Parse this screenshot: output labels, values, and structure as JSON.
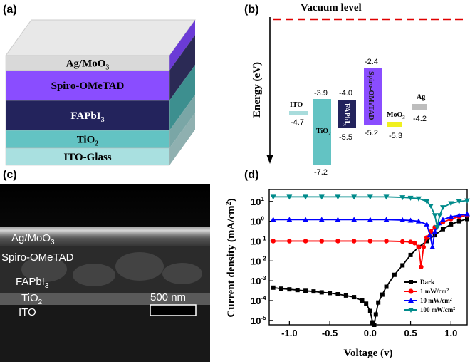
{
  "panels": {
    "a": {
      "label": "(a)",
      "layers": [
        {
          "name": "Ag/MoO",
          "sub": "3",
          "front": "#d9d9d9",
          "side": "#6b3bd6",
          "top": "#e8e8e8"
        },
        {
          "name": "Spiro-OMeTAD",
          "sub": "",
          "front": "#8a4dff",
          "side": "#2b2a55"
        },
        {
          "name": "FAPbI",
          "sub": "3",
          "front": "#23235c",
          "side": "#3d8f8f"
        },
        {
          "name": "TiO",
          "sub": "2",
          "front": "#63c3c3",
          "side": "#7aa6a6"
        },
        {
          "name": "ITO-Glass",
          "sub": "",
          "front": "#a9e0e0",
          "side": "#8fb0b0"
        }
      ]
    },
    "b": {
      "label": "(b)",
      "vacuum_label": "Vacuum level",
      "yaxis_label": "Energy (eV)",
      "levels": [
        {
          "id": "ito",
          "label": "ITO",
          "values": [
            "-4.7"
          ],
          "color": "#a8dcdc"
        },
        {
          "id": "tio2",
          "label": "TiO",
          "sub": "2",
          "values": [
            "-3.9",
            "-7.2"
          ],
          "color": "#63c3c3"
        },
        {
          "id": "fapbi3",
          "label": "FAPbI",
          "sub": "3",
          "values": [
            "-4.0",
            "-5.5"
          ],
          "color": "#23235c"
        },
        {
          "id": "spiro",
          "label": "Spiro-OMeTAD",
          "values": [
            "-2.4",
            "-5.2"
          ],
          "color": "#8a4dff"
        },
        {
          "id": "moo3",
          "label": "MoO",
          "sub": "3",
          "values": [
            "-5.3"
          ],
          "color": "#f0f020"
        },
        {
          "id": "ag",
          "label": "Ag",
          "values": [
            "-4.2"
          ],
          "color": "#bdbdbd"
        }
      ]
    },
    "c": {
      "label": "(c)",
      "layer_labels": [
        "Ag/MoO",
        "Spiro-OMeTAD",
        "FAPbI",
        "TiO",
        "ITO"
      ],
      "subs": [
        "3",
        "",
        "3",
        "2",
        ""
      ],
      "scalebar": "500  nm"
    },
    "d": {
      "label": "(d)",
      "xlabel": "Voltage (v)",
      "ylabel": "Current density (mA/cm",
      "ylabel_sup": "2",
      "ylabel_end": ")",
      "x_ticks": [
        "-1.0",
        "-0.5",
        "0.0",
        "0.5",
        "1.0"
      ],
      "y_ticks": [
        "10",
        "10",
        "10",
        "10",
        "10",
        "10",
        "10"
      ],
      "y_exps": [
        "1",
        "0",
        "-1",
        "-2",
        "-3",
        "-4",
        "-5"
      ],
      "legend": [
        {
          "text": "Dark",
          "sup": "",
          "color": "#000000",
          "marker": "square"
        },
        {
          "text": "1 mW/cm",
          "sup": "2",
          "color": "#ff0000",
          "marker": "circle"
        },
        {
          "text": "10 mW/cm",
          "sup": "2",
          "color": "#0000ff",
          "marker": "triangle-up"
        },
        {
          "text": "100 mW/cm",
          "sup": "2",
          "color": "#008b8b",
          "marker": "triangle-down"
        }
      ]
    }
  },
  "chart_data": {
    "type": "line",
    "xlabel": "Voltage (v)",
    "ylabel": "Current density (mA/cm2)",
    "yscale": "log",
    "xlim": [
      -1.25,
      1.2
    ],
    "ylim": [
      6e-06,
      40
    ],
    "series": [
      {
        "name": "Dark",
        "color": "#000000",
        "marker": "square",
        "x": [
          -1.2,
          -1.1,
          -1.0,
          -0.9,
          -0.8,
          -0.7,
          -0.6,
          -0.5,
          -0.4,
          -0.3,
          -0.2,
          -0.1,
          -0.05,
          0.0,
          0.03,
          0.05,
          0.07,
          0.1,
          0.15,
          0.2,
          0.3,
          0.4,
          0.5,
          0.6,
          0.7,
          0.8,
          0.9,
          1.0,
          1.1,
          1.2
        ],
        "y": [
          0.00045,
          0.0004,
          0.00037,
          0.00034,
          0.00031,
          0.00029,
          0.00026,
          0.00024,
          0.00021,
          0.00018,
          0.00015,
          0.0001,
          7e-05,
          3e-05,
          8e-06,
          6e-06,
          2e-05,
          8e-05,
          0.0002,
          0.0005,
          0.002,
          0.006,
          0.02,
          0.05,
          0.1,
          0.2,
          0.4,
          0.7,
          1.0,
          1.3
        ]
      },
      {
        "name": "1 mW/cm2",
        "color": "#ff0000",
        "marker": "circle",
        "x": [
          -1.2,
          -1.0,
          -0.8,
          -0.6,
          -0.4,
          -0.2,
          0.0,
          0.2,
          0.4,
          0.5,
          0.55,
          0.6,
          0.63,
          0.66,
          0.7,
          0.75,
          0.8,
          0.9,
          1.0,
          1.1,
          1.2
        ],
        "y": [
          0.1,
          0.1,
          0.1,
          0.1,
          0.1,
          0.1,
          0.1,
          0.1,
          0.095,
          0.09,
          0.08,
          0.05,
          0.005,
          0.05,
          0.15,
          0.3,
          0.5,
          0.9,
          1.3,
          1.7,
          2.0
        ]
      },
      {
        "name": "10 mW/cm2",
        "color": "#0000ff",
        "marker": "triangle-up",
        "x": [
          -1.2,
          -1.0,
          -0.8,
          -0.6,
          -0.4,
          -0.2,
          0.0,
          0.2,
          0.4,
          0.5,
          0.6,
          0.7,
          0.74,
          0.77,
          0.8,
          0.85,
          0.9,
          1.0,
          1.1,
          1.2
        ],
        "y": [
          1.2,
          1.2,
          1.2,
          1.2,
          1.2,
          1.2,
          1.2,
          1.2,
          1.15,
          1.1,
          1.0,
          0.7,
          0.2,
          0.05,
          0.3,
          0.8,
          1.2,
          1.7,
          2.0,
          2.3
        ]
      },
      {
        "name": "100 mW/cm2",
        "color": "#008b8b",
        "marker": "triangle-down",
        "x": [
          -1.2,
          -1.0,
          -0.8,
          -0.6,
          -0.4,
          -0.2,
          0.0,
          0.2,
          0.4,
          0.5,
          0.6,
          0.7,
          0.75,
          0.8,
          0.83,
          0.86,
          0.9,
          1.0,
          1.1,
          1.2
        ],
        "y": [
          17,
          17,
          17,
          17,
          17,
          17,
          17,
          17,
          16,
          15,
          14,
          10,
          6,
          2,
          0.5,
          2,
          5,
          8,
          10,
          11
        ]
      }
    ]
  }
}
